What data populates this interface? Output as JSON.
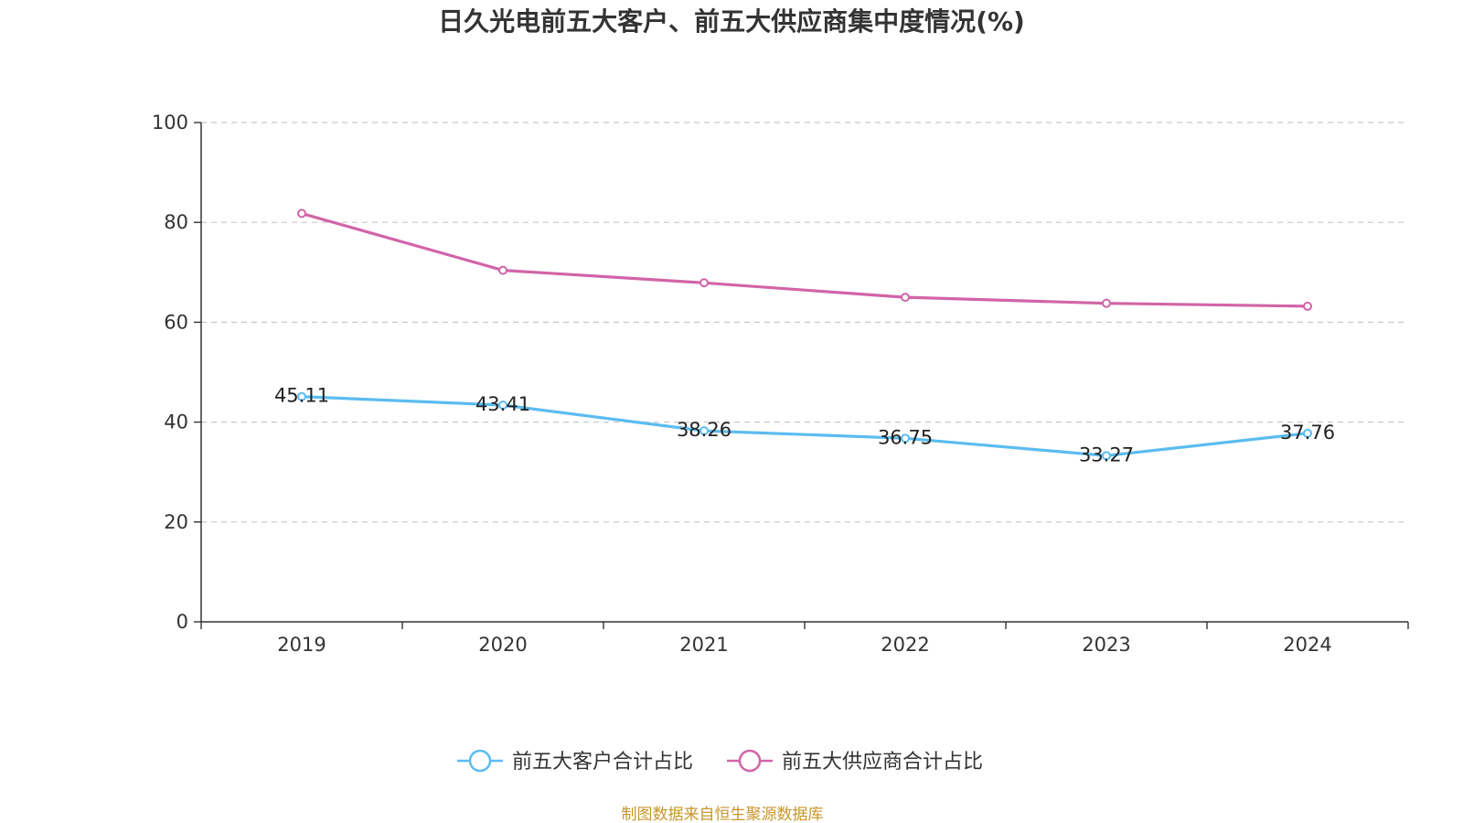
{
  "chart_data": {
    "type": "line",
    "title": "日久光电前五大客户、前五大供应商集中度情况(%)",
    "categories": [
      "2019",
      "2020",
      "2021",
      "2022",
      "2023",
      "2024"
    ],
    "ylim": [
      0,
      100
    ],
    "yticks": [
      "0",
      "20",
      "40",
      "60",
      "80",
      "100"
    ],
    "grid": true,
    "legend_position": "bottom-center",
    "series": [
      {
        "name": "前五大客户合计占比",
        "color": "#5bbcf0",
        "values": [
          45.11,
          43.41,
          38.26,
          36.75,
          33.27,
          37.76
        ],
        "labels": [
          "45.11",
          "43.41",
          "38.26",
          "36.75",
          "33.27",
          "37.76"
        ],
        "show_labels": true
      },
      {
        "name": "前五大供应商合计占比",
        "color": "#d264a8",
        "values": [
          81.8,
          70.4,
          67.9,
          65.0,
          63.8,
          63.2
        ],
        "show_labels": false
      }
    ],
    "source": "制图数据来自恒生聚源数据库",
    "source_color": "#c8962a"
  }
}
